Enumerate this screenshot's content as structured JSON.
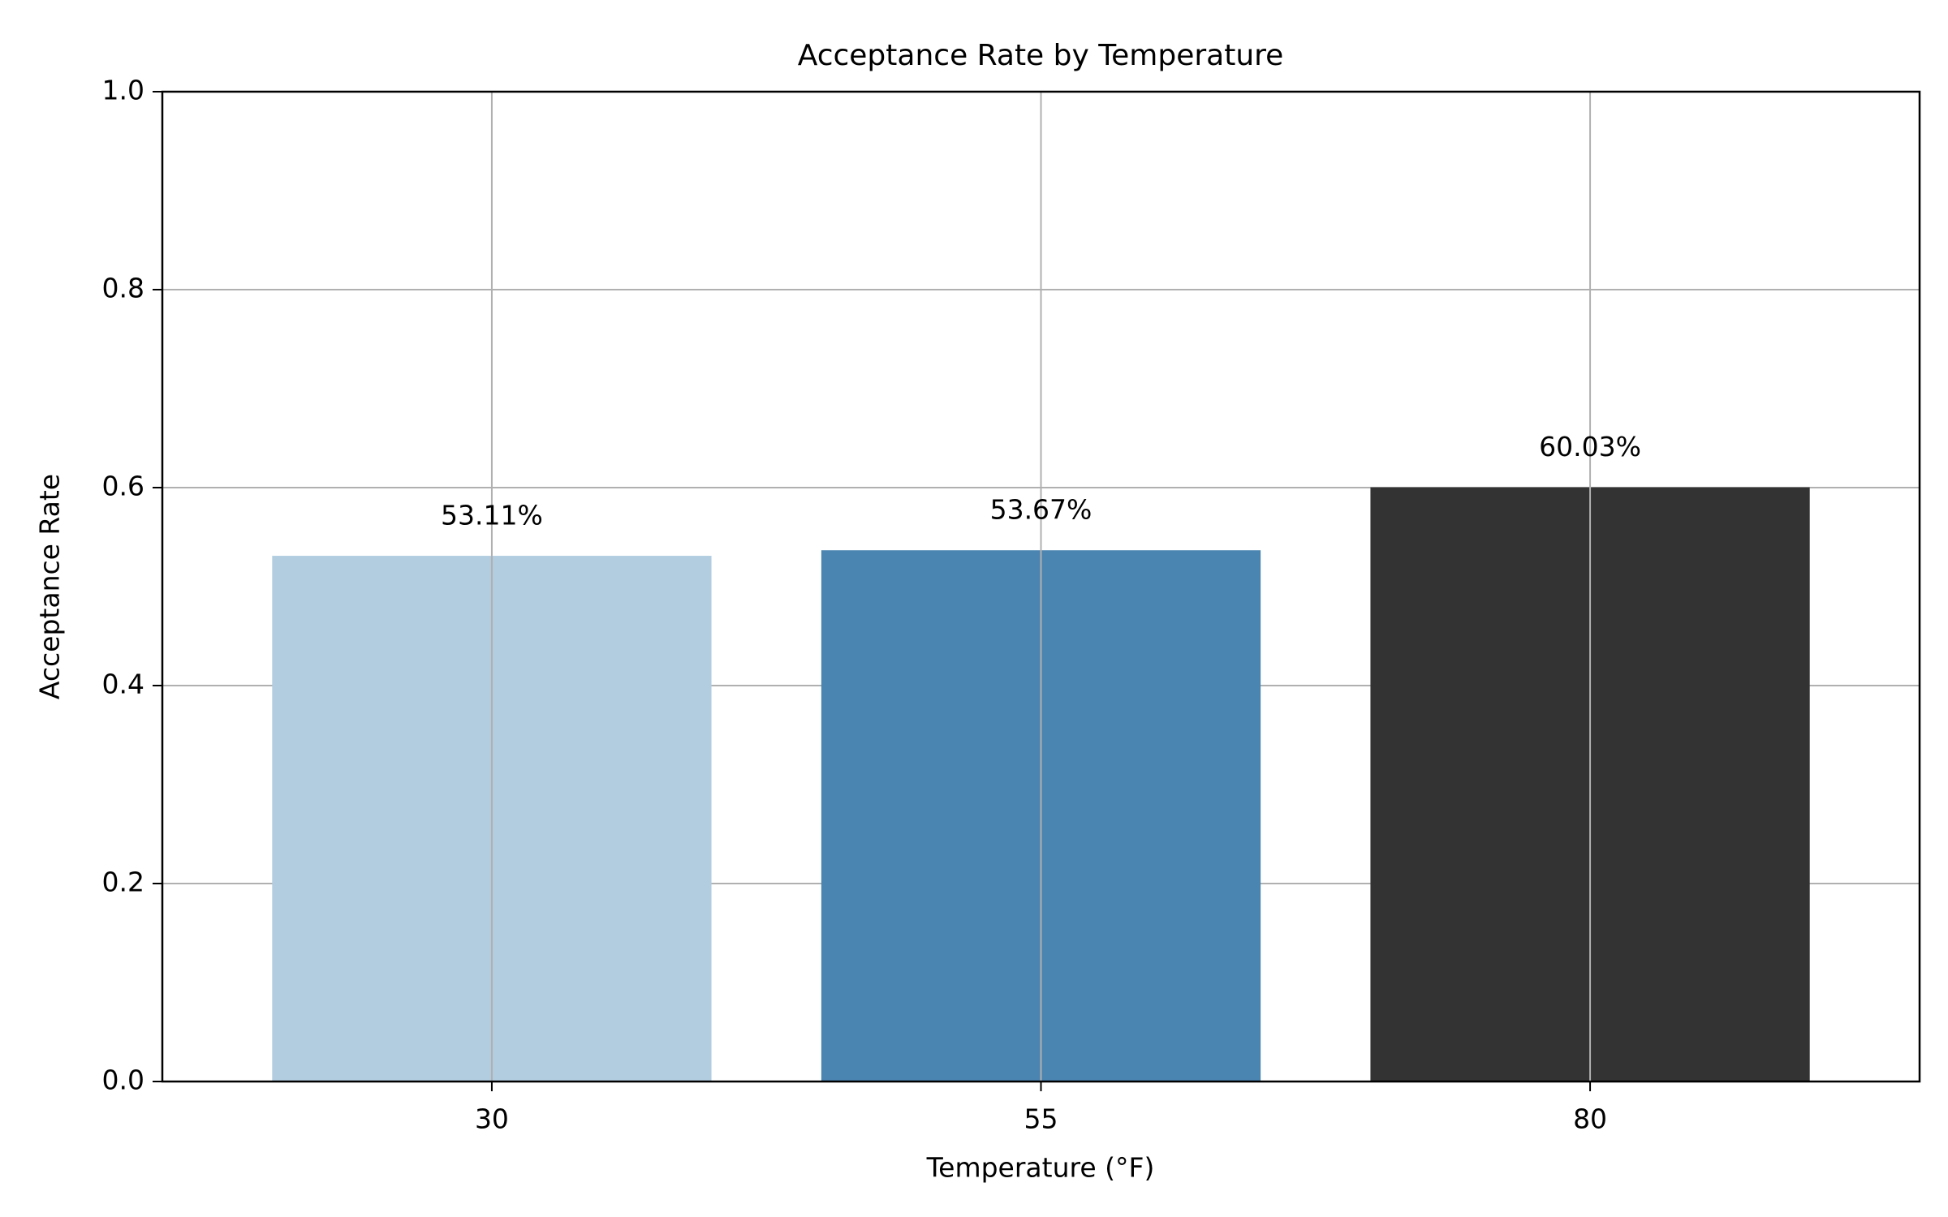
{
  "chart_data": {
    "type": "bar",
    "title": "Acceptance Rate by Temperature",
    "xlabel": "Temperature (°F)",
    "ylabel": "Acceptance Rate",
    "categories": [
      "30",
      "55",
      "80"
    ],
    "values": [
      0.5311,
      0.5367,
      0.6003
    ],
    "data_labels": [
      "53.11%",
      "53.67%",
      "60.03%"
    ],
    "bar_colors": [
      "#b2cde0",
      "#4a84b0",
      "#333333"
    ],
    "ylim": [
      0,
      1.0
    ],
    "yticks": [
      0.0,
      0.2,
      0.4,
      0.6,
      0.8,
      1.0
    ],
    "ytick_labels": [
      "0.0",
      "0.2",
      "0.4",
      "0.6",
      "0.8",
      "1.0"
    ],
    "grid": true,
    "legend": "none"
  }
}
